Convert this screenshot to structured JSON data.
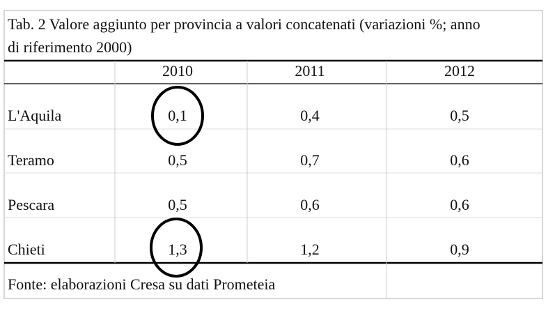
{
  "table": {
    "title": "Tab. 2 Valore aggiunto per provincia a valori concatenati (variazioni %; anno di riferimento 2000)",
    "title_lines": [
      "Tab. 2 Valore aggiunto per provincia a valori concatenati (variazioni %; anno",
      "di riferimento 2000)"
    ],
    "columns": [
      "2010",
      "2011",
      "2012"
    ],
    "rows": [
      [
        "L'Aquila",
        "0,1",
        "0,4",
        "0,5"
      ],
      [
        "Teramo",
        "0,5",
        "0,7",
        "0,6"
      ],
      [
        "Pescara",
        "0,5",
        "0,6",
        "0,6"
      ],
      [
        "Chieti",
        "1,3",
        "1,2",
        "0,9"
      ]
    ],
    "source": "Fonte: elaborazioni Cresa su dati Prometeia"
  }
}
